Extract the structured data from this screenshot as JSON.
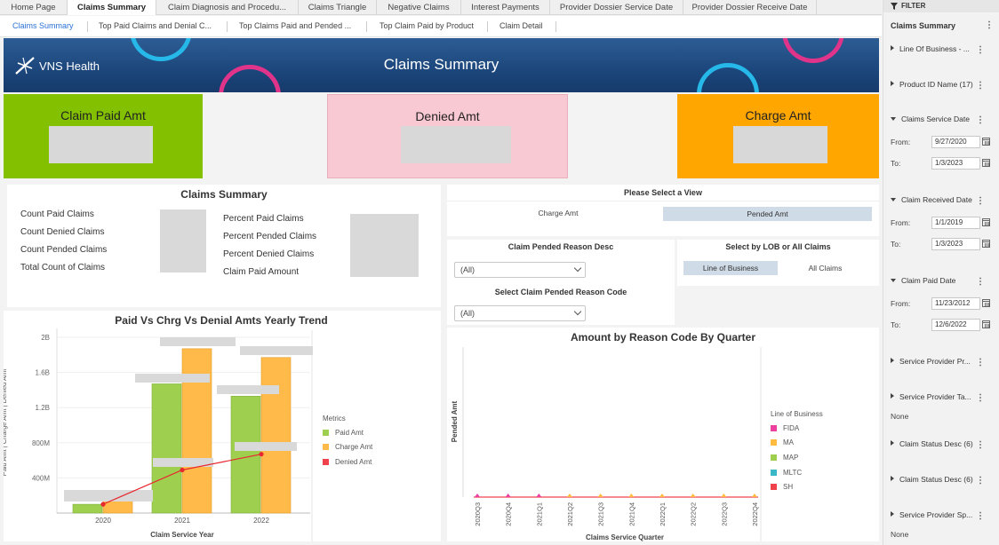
{
  "tabs": [
    "Home Page",
    "Claims Summary",
    "Claim Diagnosis and Procedu...",
    "Claims Triangle",
    "Negative Claims",
    "Interest Payments",
    "Provider Dossier Service Date",
    "Provider Dossier Receive Date"
  ],
  "subtabs": [
    "Claims Summary",
    "Top Paid Claims and Denial C...",
    "Top Claims Paid and Pended ...",
    "Top Claim Paid by Product",
    "Claim Detail"
  ],
  "banner": {
    "logo_text": "VNS Health",
    "title": "Claims Summary"
  },
  "kpis": [
    {
      "label": "Claim Paid Amt",
      "color": "#82c000"
    },
    {
      "label": "Denied Amt",
      "color": "#f8c8d3"
    },
    {
      "label": "Charge Amt",
      "color": "#ffa600"
    }
  ],
  "summary": {
    "title": "Claims Summary",
    "left_labels": [
      "Count Paid Claims",
      "Count Denied Claims",
      "Count Pended Claims",
      "Total Count of Claims"
    ],
    "right_labels": [
      "Percent Paid Claims",
      "Percent Pended Claims",
      "Percent Denied Claims",
      "Claim Paid Amount"
    ]
  },
  "view_select": {
    "title": "Please Select a View",
    "options": [
      "Charge Amt",
      "Pended Amt"
    ],
    "selected": "Pended Amt"
  },
  "pended_reason": {
    "title": "Claim Pended Reason Desc",
    "value": "(All)"
  },
  "pended_code": {
    "title": "Select Claim Pended Reason Code",
    "value": "(All)"
  },
  "lob_select": {
    "title": "Select by LOB or All Claims",
    "options": [
      "Line of Business",
      "All Claims"
    ],
    "selected": "Line of Business"
  },
  "trend_chart": {
    "title": "Paid Vs Chrg Vs Denial Amts Yearly Trend",
    "ylabel": "Paid Amt  |  Charge Amt  |  Denied Amt",
    "xlabel": "Claim Service Year",
    "legend_title": "Metrics",
    "legend": [
      {
        "name": "Paid Amt",
        "color": "#9fcf4f"
      },
      {
        "name": "Charge Amt",
        "color": "#ffba4a"
      },
      {
        "name": "Denied Amt",
        "color": "#f0424d"
      }
    ]
  },
  "reason_chart": {
    "title": "Amount by Reason Code By Quarter",
    "ylabel": "Pended Amt",
    "xlabel": "Claims Service Quarter",
    "legend_title": "Line of Business",
    "legend": [
      {
        "name": "FIDA",
        "color": "#ec3f9f"
      },
      {
        "name": "MA",
        "color": "#ffbb40"
      },
      {
        "name": "MAP",
        "color": "#9fcf4f"
      },
      {
        "name": "MLTC",
        "color": "#3ab8c8"
      },
      {
        "name": "SH",
        "color": "#f0424d"
      }
    ]
  },
  "chart_data": [
    {
      "type": "bar",
      "title": "Paid Vs Chrg Vs Denial Amts Yearly Trend",
      "xlabel": "Claim Service Year",
      "ylabel": "Paid Amt | Charge Amt | Denied Amt",
      "categories": [
        "2020",
        "2021",
        "2022"
      ],
      "yticks": [
        "400M",
        "800M",
        "1.2B",
        "1.6B",
        "2B"
      ],
      "ylim": [
        0,
        2000000000
      ],
      "series": [
        {
          "name": "Paid Amt",
          "type": "bar",
          "values": [
            100000000,
            1470000000,
            1330000000
          ]
        },
        {
          "name": "Charge Amt",
          "type": "bar",
          "values": [
            150000000,
            1870000000,
            1770000000
          ]
        },
        {
          "name": "Denied Amt",
          "type": "line",
          "values": [
            100000000,
            490000000,
            670000000
          ]
        }
      ]
    },
    {
      "type": "scatter",
      "title": "Amount by Reason Code By Quarter",
      "xlabel": "Claims Service Quarter",
      "ylabel": "Pended Amt",
      "categories": [
        "2020Q3",
        "2020Q4",
        "2021Q1",
        "2021Q2",
        "2021Q3",
        "2021Q4",
        "2022Q1",
        "2022Q2",
        "2022Q3",
        "2022Q4"
      ],
      "series": [
        {
          "name": "FIDA",
          "values": [
            0,
            0,
            0,
            null,
            null,
            null,
            null,
            null,
            null,
            null
          ]
        },
        {
          "name": "MA",
          "values": [
            null,
            null,
            null,
            0,
            0,
            0,
            0,
            0,
            0,
            0
          ]
        },
        {
          "name": "SH",
          "values": [
            0,
            0,
            0,
            0,
            0,
            0,
            0,
            0,
            0,
            0
          ]
        }
      ]
    }
  ],
  "filter": {
    "header": "FILTER",
    "sheet_title": "Claims Summary",
    "sections": [
      {
        "label": "Line Of Business - ...",
        "expanded": false
      },
      {
        "label": "Product ID Name (17)",
        "expanded": false
      },
      {
        "label": "Claims Service Date",
        "expanded": true,
        "from": "9/27/2020",
        "to": "1/3/2023"
      },
      {
        "label": "Claim Received Date",
        "expanded": true,
        "from": "1/1/2019",
        "to": "1/3/2023"
      },
      {
        "label": "Claim Paid Date",
        "expanded": true,
        "from": "11/23/2012",
        "to": "12/6/2022"
      },
      {
        "label": "Service Provider Pr...",
        "expanded": false
      },
      {
        "label": "Service Provider Ta...",
        "expanded": false,
        "value": "None"
      },
      {
        "label": "Claim Status Desc (6)",
        "expanded": false
      },
      {
        "label": "Claim Status Desc (6)",
        "expanded": false
      },
      {
        "label": "Service Provider Sp...",
        "expanded": false,
        "value": "None"
      }
    ],
    "from_label": "From:",
    "to_label": "To:"
  }
}
